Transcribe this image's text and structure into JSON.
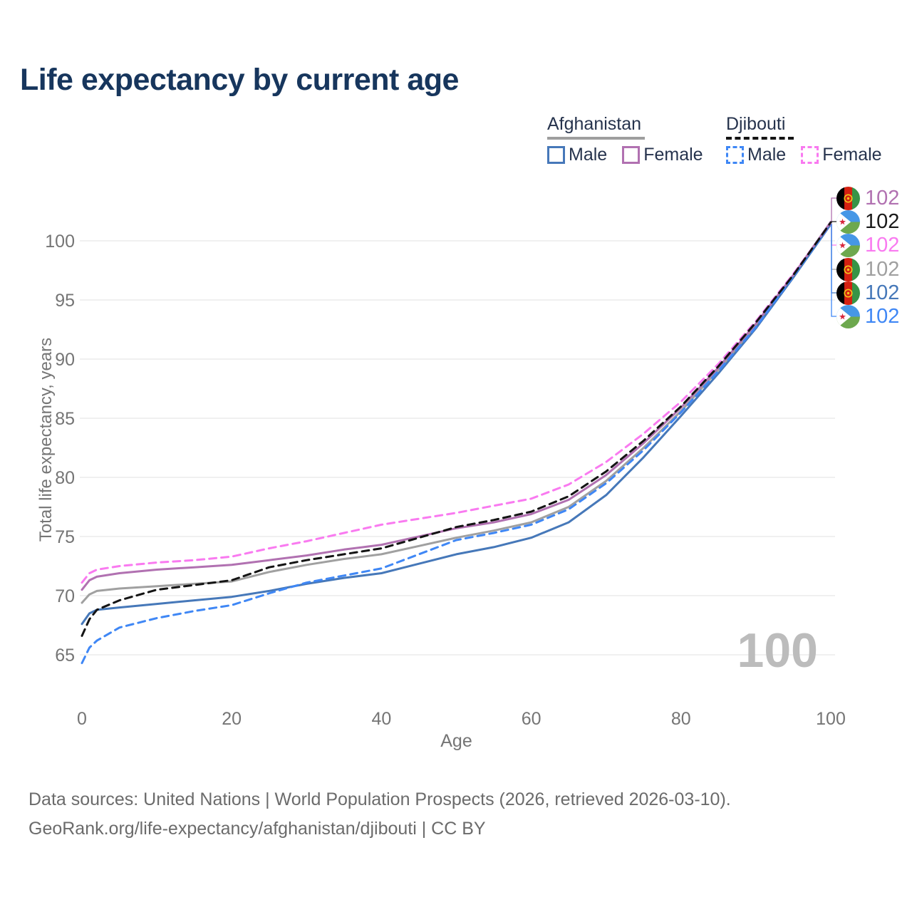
{
  "title": "Life expectancy by current age",
  "watermark": "100",
  "colors": {
    "title_text": "#17365d",
    "legend_text": "#26334d",
    "axis_text": "#757575",
    "grid": "#ececec",
    "footer_text": "#6b6b6b",
    "watermark_text": "#bcbcbc",
    "afghanistan_male": "#4678b9",
    "afghanistan_female": "#b171b1",
    "afghanistan_both": "#a0a0a0",
    "djibouti_male": "#3f87f5",
    "djibouti_female": "#f97af0",
    "djibouti_both": "#141414"
  },
  "legend": {
    "groups": [
      {
        "label": "Afghanistan",
        "underline": "solid",
        "underline_color": "#9e9e9e",
        "items": [
          {
            "label": "Male",
            "color": "#4678b9",
            "dashed": false
          },
          {
            "label": "Female",
            "color": "#b171b1",
            "dashed": false
          }
        ]
      },
      {
        "label": "Djibouti",
        "underline": "dashed",
        "underline_color": "#141414",
        "items": [
          {
            "label": "Male",
            "color": "#3f87f5",
            "dashed": true
          },
          {
            "label": "Female",
            "color": "#f97af0",
            "dashed": true
          }
        ]
      }
    ]
  },
  "y_axis": {
    "label": "Total life expectancy, years"
  },
  "x_axis": {
    "label": "Age"
  },
  "end_labels": [
    {
      "flag": "afghanistan",
      "series": "afghanistan-female",
      "value": "102",
      "color": "#b171b1"
    },
    {
      "flag": "djibouti",
      "series": "djibouti-both",
      "value": "102",
      "color": "#1a1a1a"
    },
    {
      "flag": "djibouti",
      "series": "djibouti-female",
      "value": "102",
      "color": "#f97af0"
    },
    {
      "flag": "afghanistan",
      "series": "afghanistan-both",
      "value": "102",
      "color": "#a0a0a0"
    },
    {
      "flag": "afghanistan",
      "series": "afghanistan-male",
      "value": "102",
      "color": "#4678b9"
    },
    {
      "flag": "djibouti",
      "series": "djibouti-male",
      "value": "102",
      "color": "#3f87f5"
    }
  ],
  "footer": {
    "line1": "Data sources: United Nations | World Population Prospects (2026, retrieved 2026-03-10).",
    "line2": "GeoRank.org/life-expectancy/afghanistan/djibouti | CC BY"
  },
  "chart_data": {
    "type": "line",
    "title": "Life expectancy by current age",
    "xlabel": "Age",
    "ylabel": "Total life expectancy, years",
    "xlim": [
      0,
      100
    ],
    "ylim": [
      63.5,
      103
    ],
    "x_ticks": [
      0,
      20,
      40,
      60,
      80,
      100
    ],
    "y_ticks": [
      65,
      70,
      75,
      80,
      85,
      90,
      95,
      100
    ],
    "grid": "horizontal-only",
    "legend_position": "top-right",
    "ages": [
      0,
      1,
      2,
      5,
      10,
      15,
      20,
      25,
      30,
      35,
      40,
      45,
      50,
      55,
      60,
      65,
      70,
      75,
      80,
      85,
      90,
      95,
      100
    ],
    "series": [
      {
        "id": "afghanistan-both",
        "country": "Afghanistan",
        "sex": "Both",
        "color": "#a0a0a0",
        "dash": false,
        "values": [
          69.4,
          70.1,
          70.4,
          70.6,
          70.8,
          71.0,
          71.2,
          72.0,
          72.6,
          73.1,
          73.5,
          74.2,
          74.9,
          75.5,
          76.2,
          77.5,
          79.7,
          82.5,
          85.6,
          89.1,
          92.8,
          97.0,
          101.48
        ]
      },
      {
        "id": "afghanistan-male",
        "country": "Afghanistan",
        "sex": "Male",
        "color": "#4678b9",
        "dash": false,
        "values": [
          67.6,
          68.5,
          68.8,
          69.0,
          69.3,
          69.6,
          69.9,
          70.4,
          71.0,
          71.5,
          71.9,
          72.7,
          73.5,
          74.1,
          74.9,
          76.2,
          78.5,
          81.7,
          85.2,
          88.8,
          92.6,
          96.9,
          101.4
        ]
      },
      {
        "id": "afghanistan-female",
        "country": "Afghanistan",
        "sex": "Female",
        "color": "#b171b1",
        "dash": false,
        "values": [
          70.5,
          71.3,
          71.6,
          71.9,
          72.2,
          72.4,
          72.6,
          73.0,
          73.4,
          73.9,
          74.3,
          75.0,
          75.7,
          76.2,
          76.9,
          78.1,
          80.2,
          82.9,
          85.9,
          89.3,
          93.0,
          97.1,
          101.6
        ]
      },
      {
        "id": "djibouti-male",
        "country": "Djibouti",
        "sex": "Male",
        "color": "#3f87f5",
        "dash": true,
        "values": [
          64.3,
          65.6,
          66.2,
          67.3,
          68.1,
          68.7,
          69.2,
          70.2,
          71.1,
          71.7,
          72.3,
          73.5,
          74.7,
          75.3,
          76.0,
          77.3,
          79.5,
          82.3,
          85.5,
          89.0,
          92.7,
          97.0,
          101.44
        ]
      },
      {
        "id": "djibouti-female",
        "country": "Djibouti",
        "sex": "Female",
        "color": "#f97af0",
        "dash": true,
        "values": [
          71.1,
          71.9,
          72.2,
          72.5,
          72.8,
          73.0,
          73.3,
          74.0,
          74.6,
          75.3,
          76.0,
          76.5,
          77.0,
          77.6,
          78.2,
          79.4,
          81.3,
          83.7,
          86.4,
          89.6,
          93.2,
          97.2,
          101.5
        ]
      },
      {
        "id": "djibouti-both",
        "country": "Djibouti",
        "sex": "Both",
        "color": "#141414",
        "dash": true,
        "values": [
          66.6,
          68.0,
          68.8,
          69.6,
          70.5,
          70.9,
          71.3,
          72.4,
          73.0,
          73.5,
          74.0,
          74.9,
          75.8,
          76.4,
          77.1,
          78.4,
          80.5,
          83.1,
          86.0,
          89.4,
          93.1,
          97.1,
          101.55
        ]
      }
    ]
  }
}
